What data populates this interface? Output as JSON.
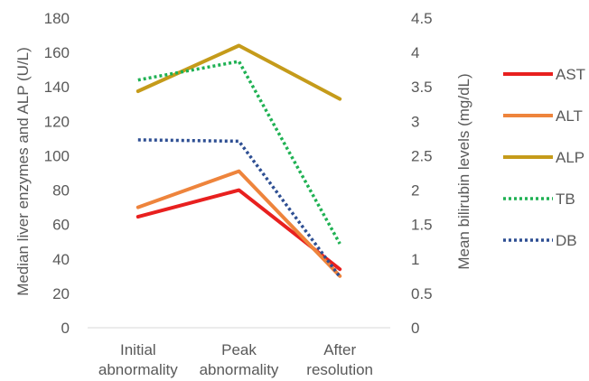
{
  "chart_data": {
    "type": "line",
    "categories": [
      [
        "Initial",
        "abnormality"
      ],
      [
        "Peak",
        "abnormality"
      ],
      [
        "After",
        "resolution"
      ]
    ],
    "y_left": {
      "label": "Median liver enzymes and ALP (U/L)",
      "ylim": [
        0,
        180
      ],
      "ticks": [
        0,
        20,
        40,
        60,
        80,
        100,
        120,
        140,
        160,
        180
      ]
    },
    "y_right": {
      "label": "Mean bilirubin levels (mg/dL)",
      "ylim": [
        0,
        4.5
      ],
      "ticks": [
        "0",
        "0.5",
        "1",
        "1.5",
        "2",
        "2.5",
        "3",
        "3.5",
        "4",
        "4.5"
      ]
    },
    "grid": false,
    "legend_position": "right",
    "series": [
      {
        "name": "AST",
        "axis": "left",
        "values": [
          64.5,
          80,
          34
        ],
        "color": "#e8201f",
        "dash": "solid"
      },
      {
        "name": "ALT",
        "axis": "left",
        "values": [
          70,
          91,
          30
        ],
        "color": "#ee843c",
        "dash": "solid"
      },
      {
        "name": "ALP",
        "axis": "left",
        "values": [
          137.5,
          164,
          133
        ],
        "color": "#c59b1a",
        "dash": "solid"
      },
      {
        "name": "TB",
        "axis": "right",
        "values": [
          3.6,
          3.87,
          1.22
        ],
        "color": "#1fb153",
        "dash": "dotted"
      },
      {
        "name": "DB",
        "axis": "right",
        "values": [
          2.73,
          2.71,
          0.74
        ],
        "color": "#2e4f93",
        "dash": "dotted"
      }
    ]
  }
}
